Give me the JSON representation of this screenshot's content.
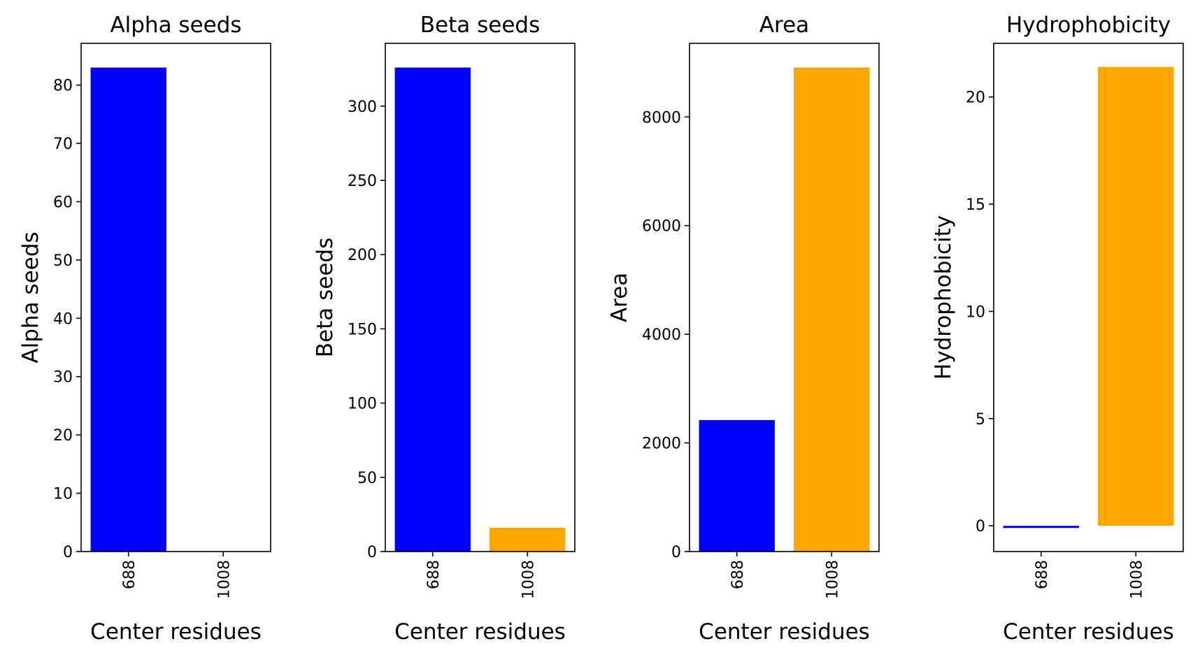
{
  "chart_data": [
    {
      "type": "bar",
      "title": "Alpha seeds",
      "xlabel": "Center residues",
      "ylabel": "Alpha seeds",
      "categories": [
        "688",
        "1008"
      ],
      "values": [
        83,
        0
      ],
      "colors": [
        "#0000ff",
        "#ffa500"
      ],
      "ylim": [
        0,
        87.15
      ],
      "yticks": [
        0,
        10,
        20,
        30,
        40,
        50,
        60,
        70,
        80
      ]
    },
    {
      "type": "bar",
      "title": "Beta seeds",
      "xlabel": "Center residues",
      "ylabel": "Beta seeds",
      "categories": [
        "688",
        "1008"
      ],
      "values": [
        326,
        16
      ],
      "colors": [
        "#0000ff",
        "#ffa500"
      ],
      "ylim": [
        0,
        342.3
      ],
      "yticks": [
        0,
        50,
        100,
        150,
        200,
        250,
        300
      ]
    },
    {
      "type": "bar",
      "title": "Area",
      "xlabel": "Center residues",
      "ylabel": "Area",
      "categories": [
        "688",
        "1008"
      ],
      "values": [
        2420,
        8910
      ],
      "colors": [
        "#0000ff",
        "#ffa500"
      ],
      "ylim": [
        0,
        9355
      ],
      "yticks": [
        0,
        2000,
        4000,
        6000,
        8000
      ]
    },
    {
      "type": "bar",
      "title": "Hydrophobicity",
      "xlabel": "Center residues",
      "ylabel": "Hydrophobicity",
      "categories": [
        "688",
        "1008"
      ],
      "values": [
        -0.1,
        21.4
      ],
      "colors": [
        "#0000ff",
        "#ffa500"
      ],
      "ylim": [
        -1.2,
        22.5
      ],
      "yticks": [
        0,
        5,
        10,
        15,
        20
      ]
    }
  ]
}
